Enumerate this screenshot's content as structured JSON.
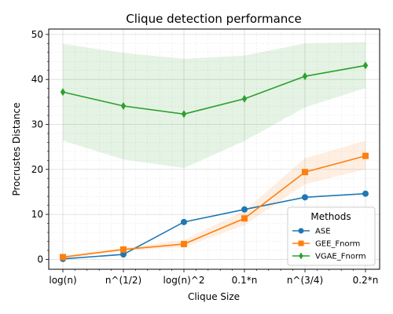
{
  "chart_data": {
    "type": "line",
    "title": "Clique detection performance",
    "xlabel": "Clique Size",
    "ylabel": "Procrustes Distance",
    "categories": [
      "log(n)",
      "n^(1/2)",
      "log(n)^2",
      "0.1*n",
      "n^(3/4)",
      "0.2*n"
    ],
    "ylim": [
      -2.2,
      51.2
    ],
    "yticks": [
      0,
      10,
      20,
      30,
      40,
      50
    ],
    "grid": true,
    "legend": {
      "title": "Methods",
      "placement": "lower-right"
    },
    "series": [
      {
        "name": "ASE",
        "color": "#1f77b4",
        "marker": "circle",
        "values": [
          0.1,
          1.1,
          8.3,
          11.1,
          13.8,
          14.6
        ],
        "band_lower": [
          0.1,
          1.0,
          8.2,
          11.0,
          13.7,
          14.5
        ],
        "band_upper": [
          0.2,
          1.2,
          8.4,
          11.2,
          13.9,
          14.7
        ]
      },
      {
        "name": "GEE_Fnorm",
        "color": "#ff7f0e",
        "marker": "square",
        "values": [
          0.5,
          2.2,
          3.4,
          9.1,
          19.4,
          23.0
        ],
        "band_lower": [
          0.2,
          1.9,
          2.7,
          7.6,
          16.7,
          20.0
        ],
        "band_upper": [
          0.8,
          2.6,
          4.3,
          10.8,
          22.5,
          26.4
        ]
      },
      {
        "name": "VGAE_Fnorm",
        "color": "#2ca02c",
        "marker": "diamond",
        "values": [
          37.2,
          34.1,
          32.3,
          35.7,
          40.7,
          43.1
        ],
        "band_lower": [
          26.4,
          22.2,
          20.3,
          26.3,
          33.8,
          38.1
        ],
        "band_upper": [
          47.9,
          45.9,
          44.6,
          45.3,
          48.0,
          48.3
        ]
      }
    ]
  }
}
